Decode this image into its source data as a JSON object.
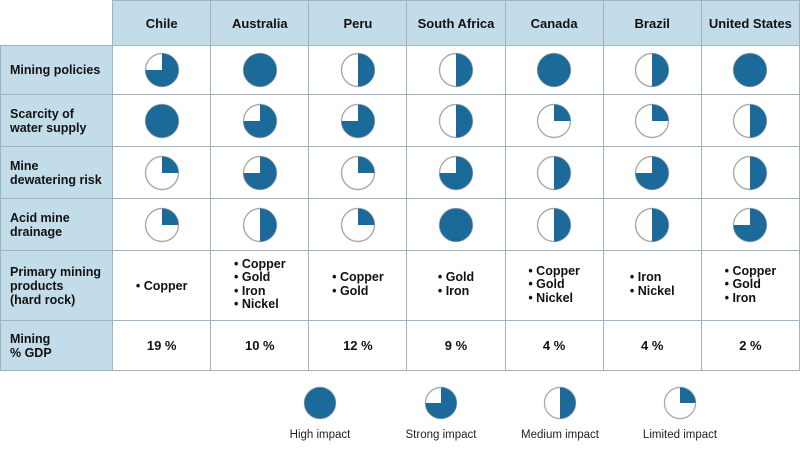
{
  "colors": {
    "fill": "#1b6a99",
    "header_bg": "#c3dcea",
    "ring": "#aaaaaa"
  },
  "countries": [
    "Chile",
    "Australia",
    "Peru",
    "South Africa",
    "Canada",
    "Brazil",
    "United States"
  ],
  "impact_rows": [
    {
      "label": [
        "Mining policies"
      ],
      "levels": [
        0.75,
        1,
        0.5,
        0.5,
        1,
        0.5,
        1
      ]
    },
    {
      "label": [
        "Scarcity of",
        "water supply"
      ],
      "levels": [
        1,
        0.75,
        0.75,
        0.5,
        0.25,
        0.25,
        0.5
      ]
    },
    {
      "label": [
        "Mine",
        "dewatering risk"
      ],
      "levels": [
        0.25,
        0.75,
        0.25,
        0.75,
        0.5,
        0.75,
        0.5
      ]
    },
    {
      "label": [
        "Acid mine",
        "drainage"
      ],
      "levels": [
        0.25,
        0.5,
        0.25,
        1,
        0.5,
        0.5,
        0.75
      ]
    }
  ],
  "products_row": {
    "label": [
      "Primary mining",
      "products",
      "(hard rock)"
    ],
    "values": [
      [
        "Copper"
      ],
      [
        "Copper",
        "Gold",
        "Iron",
        "Nickel"
      ],
      [
        "Copper",
        "Gold"
      ],
      [
        "Gold",
        "Iron"
      ],
      [
        "Copper",
        "Gold",
        "Nickel"
      ],
      [
        "Iron",
        "Nickel"
      ],
      [
        "Copper",
        "Gold",
        "Iron"
      ]
    ]
  },
  "gdp_row": {
    "label": [
      "Mining",
      "% GDP"
    ],
    "values": [
      "19 %",
      "10 %",
      "12 %",
      "9 %",
      "4 %",
      "4 %",
      "2 %"
    ]
  },
  "legend": [
    {
      "label": "High impact",
      "level": 1,
      "icon": "full-circle-icon"
    },
    {
      "label": "Strong impact",
      "level": 0.75,
      "icon": "three-quarter-circle-icon"
    },
    {
      "label": "Medium impact",
      "level": 0.5,
      "icon": "half-circle-icon"
    },
    {
      "label": "Limited impact",
      "level": 0.25,
      "icon": "quarter-circle-icon"
    }
  ]
}
